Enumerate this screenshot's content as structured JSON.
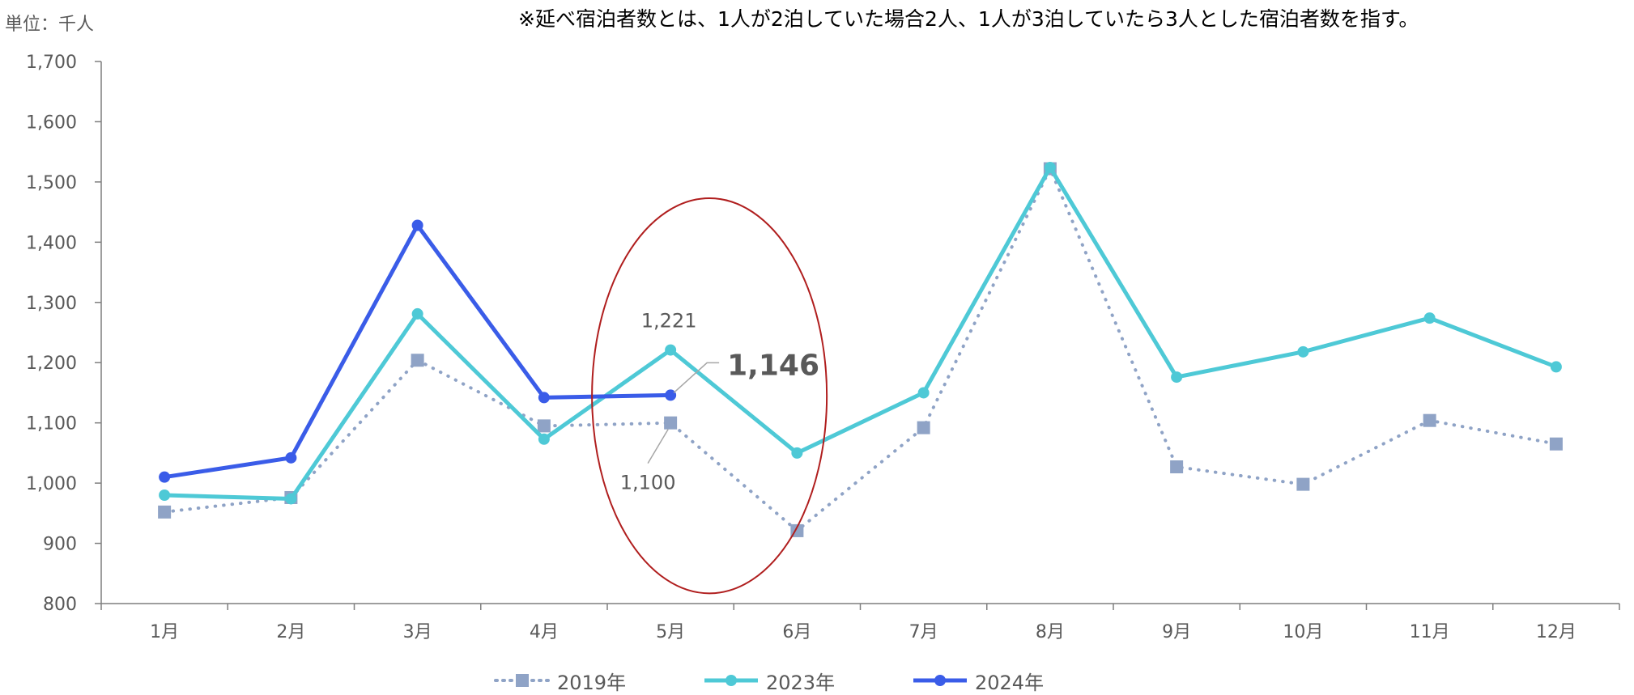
{
  "header": {
    "unit": "単位：千人",
    "note": "※延べ宿泊者数とは、1人が2泊していた場合2人、1人が3泊していたら3人とした宿泊者数を指す。"
  },
  "colors": {
    "s2019": "#8fa3c6",
    "s2023": "#4ec9d6",
    "s2024": "#3a5ce8",
    "highlight": "#b01e1e",
    "axis": "#7f7f7f",
    "tick_text": "#595959"
  },
  "chart_data": {
    "type": "line",
    "title": "",
    "xlabel": "",
    "ylabel": "",
    "ylim": [
      800,
      1700
    ],
    "y_ticks": [
      800,
      900,
      1000,
      1100,
      1200,
      1300,
      1400,
      1500,
      1600,
      1700
    ],
    "y_tick_labels": [
      "800",
      "900",
      "1,000",
      "1,100",
      "1,200",
      "1,300",
      "1,400",
      "1,500",
      "1,600",
      "1,700"
    ],
    "categories": [
      "1月",
      "2月",
      "3月",
      "4月",
      "5月",
      "6月",
      "7月",
      "8月",
      "9月",
      "10月",
      "11月",
      "12月"
    ],
    "grid": false,
    "legend_position": "bottom",
    "series": [
      {
        "name": "2019年",
        "style": "dotted",
        "marker": "square",
        "values": [
          952,
          976,
          1204,
          1095,
          1100,
          921,
          1092,
          1522,
          1027,
          998,
          1104,
          1065
        ]
      },
      {
        "name": "2023年",
        "style": "solid",
        "marker": "circle",
        "values": [
          980,
          974,
          1281,
          1073,
          1221,
          1050,
          1150,
          1524,
          1176,
          1218,
          1274,
          1193
        ]
      },
      {
        "name": "2024年",
        "style": "solid",
        "marker": "circle",
        "values": [
          1010,
          1042,
          1428,
          1142,
          1146,
          null,
          null,
          null,
          null,
          null,
          null,
          null
        ]
      }
    ],
    "annotations": [
      {
        "text": "1,221",
        "category": "5月",
        "value": 1221,
        "series": "2023年",
        "emphasis": false
      },
      {
        "text": "1,146",
        "category": "5月",
        "value": 1146,
        "series": "2024年",
        "emphasis": true
      },
      {
        "text": "1,100",
        "category": "5月",
        "value": 1100,
        "series": "2019年",
        "emphasis": false
      }
    ],
    "highlight": {
      "shape": "ellipse",
      "category": "5月"
    }
  }
}
